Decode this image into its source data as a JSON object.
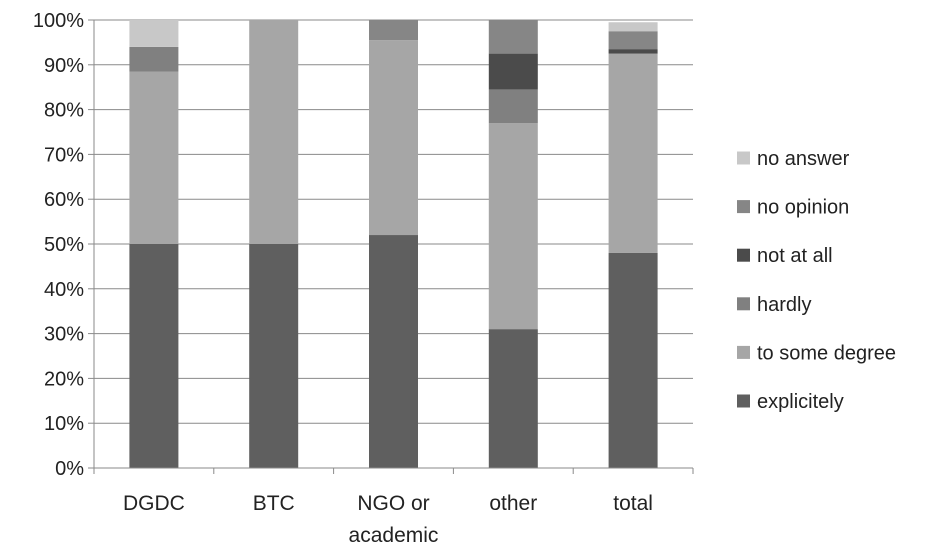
{
  "chart_data": {
    "type": "bar",
    "stacked": true,
    "percent": true,
    "categories": [
      [
        "DGDC"
      ],
      [
        "BTC"
      ],
      [
        "NGO or",
        "academic"
      ],
      [
        "other"
      ],
      [
        "total"
      ]
    ],
    "series": [
      {
        "name": "explicitely",
        "color": "#5f5f5f",
        "values": [
          50,
          50,
          52,
          31,
          48
        ]
      },
      {
        "name": "to some degree",
        "color": "#a6a6a6",
        "values": [
          38.5,
          50,
          43.5,
          46,
          44.5
        ]
      },
      {
        "name": "hardly",
        "color": "#808080",
        "values": [
          5.5,
          0,
          0,
          7.5,
          0
        ]
      },
      {
        "name": "not at all",
        "color": "#4b4b4b",
        "values": [
          0,
          0,
          0,
          8,
          1
        ]
      },
      {
        "name": "no opinion",
        "color": "#868686",
        "values": [
          0,
          0,
          4.5,
          7.5,
          4
        ]
      },
      {
        "name": "no answer",
        "color": "#c8c8c8",
        "values": [
          6,
          0,
          0,
          0,
          2
        ]
      }
    ],
    "yaxis": {
      "ylim": [
        0,
        100
      ],
      "ticks": [
        "0%",
        "10%",
        "20%",
        "30%",
        "40%",
        "50%",
        "60%",
        "70%",
        "80%",
        "90%",
        "100%"
      ]
    },
    "grid": true,
    "legend": {
      "placement": "right",
      "order": [
        "no answer",
        "no opinion",
        "not at all",
        "hardly",
        "to some degree",
        "explicitely"
      ]
    }
  }
}
